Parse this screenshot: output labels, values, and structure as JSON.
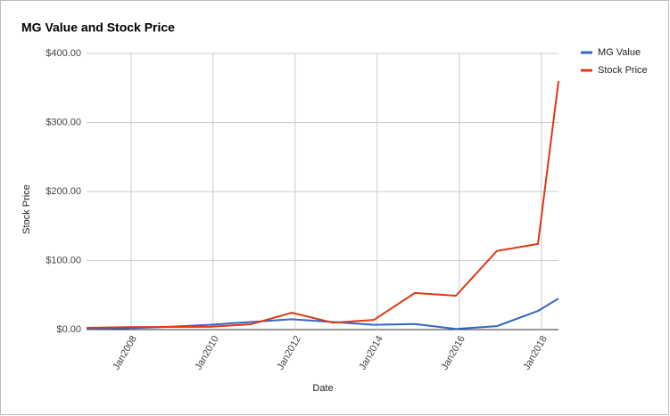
{
  "chart_data": {
    "type": "line",
    "title": "MG Value and Stock Price",
    "x_label": "Date",
    "y_label": "Stock Price",
    "x": [
      "2006-12",
      "2007-12",
      "2008-12",
      "2009-12",
      "2010-12",
      "2011-12",
      "2012-12",
      "2013-12",
      "2014-12",
      "2015-12",
      "2016-12",
      "2017-12",
      "2018-06"
    ],
    "series": [
      {
        "name": "MG Value",
        "color": "#3366cc",
        "values": [
          1,
          2,
          4,
          7,
          11,
          15,
          11,
          7,
          8,
          1,
          5,
          27,
          45
        ]
      },
      {
        "name": "Stock Price",
        "color": "#dc3912",
        "values": [
          2.6,
          3.5,
          3.9,
          4,
          7.7,
          24.5,
          10,
          14,
          53,
          49,
          114,
          124,
          360
        ]
      }
    ],
    "xlim": [
      "2006-12",
      "2018-06"
    ],
    "xticks": [
      {
        "value": "2008-01",
        "label": "Jan2008"
      },
      {
        "value": "2010-01",
        "label": "Jan2010"
      },
      {
        "value": "2012-01",
        "label": "Jan2012"
      },
      {
        "value": "2014-01",
        "label": "Jan2014"
      },
      {
        "value": "2016-01",
        "label": "Jan2016"
      },
      {
        "value": "2018-01",
        "label": "Jan2018"
      }
    ],
    "ylim": [
      0,
      400
    ],
    "yticks": [
      {
        "value": 0,
        "label": "$0.00"
      },
      {
        "value": 100,
        "label": "$100.00"
      },
      {
        "value": 200,
        "label": "$200.00"
      },
      {
        "value": 300,
        "label": "$300.00"
      },
      {
        "value": 400,
        "label": "$400.00"
      }
    ],
    "grid": true,
    "legend": "right"
  }
}
